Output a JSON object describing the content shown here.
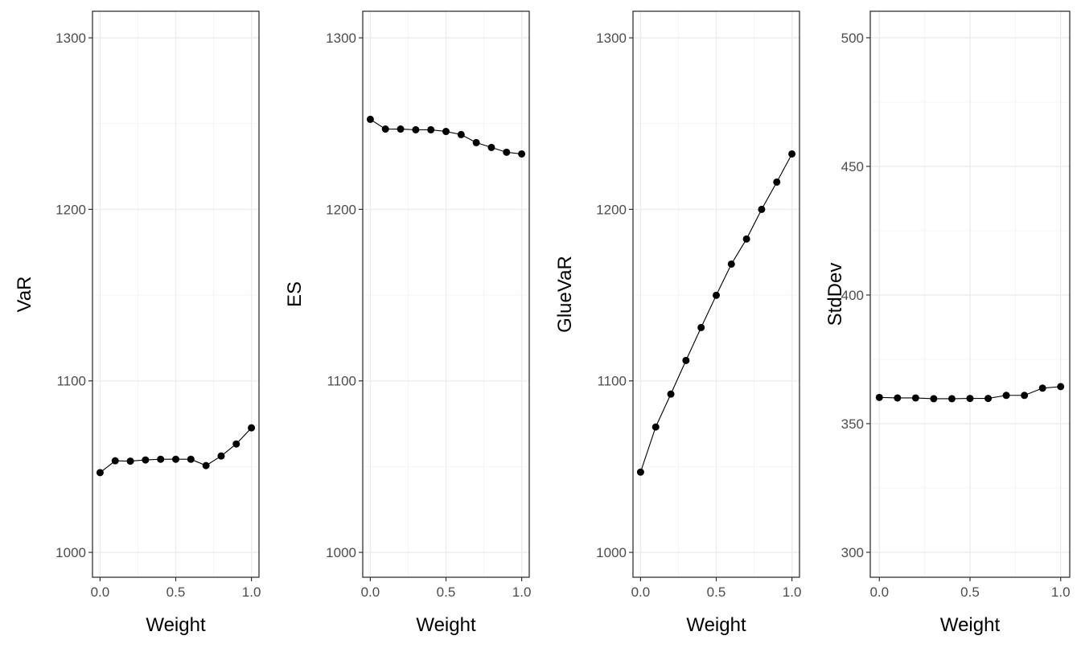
{
  "chart_data": [
    {
      "type": "line",
      "xlabel": "Weight",
      "ylabel": "VaR",
      "x": [
        0,
        0.1,
        0.2,
        0.3,
        0.4,
        0.5,
        0.6,
        0.7,
        0.8,
        0.9,
        1.0
      ],
      "y": [
        1046.5,
        1053.4,
        1053.2,
        1053.9,
        1054.3,
        1054.3,
        1054.3,
        1050.6,
        1056.2,
        1063.2,
        1072.6
      ],
      "xlim": [
        -0.05,
        1.05
      ],
      "ylim": [
        985.5,
        1315.5
      ],
      "xticks": [
        "0.0",
        "0.5",
        "1.0"
      ],
      "xtick_values": [
        0,
        0.5,
        1
      ],
      "yticks": [
        "1000",
        "1100",
        "1200",
        "1300"
      ],
      "ytick_values": [
        1000,
        1100,
        1200,
        1300
      ],
      "grid": true,
      "markers": true
    },
    {
      "type": "line",
      "xlabel": "Weight",
      "ylabel": "ES",
      "x": [
        0,
        0.1,
        0.2,
        0.3,
        0.4,
        0.5,
        0.6,
        0.7,
        0.8,
        0.9,
        1.0
      ],
      "y": [
        1252.5,
        1246.8,
        1246.8,
        1246.4,
        1246.4,
        1245.4,
        1243.6,
        1238.9,
        1236.1,
        1233.3,
        1232.3
      ],
      "xlim": [
        -0.05,
        1.05
      ],
      "ylim": [
        985.5,
        1315.5
      ],
      "xticks": [
        "0.0",
        "0.5",
        "1.0"
      ],
      "xtick_values": [
        0,
        0.5,
        1
      ],
      "yticks": [
        "1000",
        "1100",
        "1200",
        "1300"
      ],
      "ytick_values": [
        1000,
        1100,
        1200,
        1300
      ],
      "grid": true,
      "markers": true
    },
    {
      "type": "line",
      "xlabel": "Weight",
      "ylabel": "GlueVaR",
      "x": [
        0,
        0.1,
        0.2,
        0.3,
        0.4,
        0.5,
        0.6,
        0.7,
        0.8,
        0.9,
        1.0
      ],
      "y": [
        1046.8,
        1073.1,
        1092.3,
        1111.9,
        1131.1,
        1149.9,
        1168.1,
        1182.7,
        1200.0,
        1215.9,
        1232.3
      ],
      "xlim": [
        -0.05,
        1.05
      ],
      "ylim": [
        985.5,
        1315.5
      ],
      "xticks": [
        "0.0",
        "0.5",
        "1.0"
      ],
      "xtick_values": [
        0,
        0.5,
        1
      ],
      "yticks": [
        "1000",
        "1100",
        "1200",
        "1300"
      ],
      "ytick_values": [
        1000,
        1100,
        1200,
        1300
      ],
      "grid": true,
      "markers": true
    },
    {
      "type": "line",
      "xlabel": "Weight",
      "ylabel": "StdDev",
      "x": [
        0,
        0.1,
        0.2,
        0.3,
        0.4,
        0.5,
        0.6,
        0.7,
        0.8,
        0.9,
        1.0
      ],
      "y": [
        360.2,
        360.0,
        360.0,
        359.7,
        359.7,
        359.8,
        359.8,
        361.0,
        361.0,
        363.8,
        364.4
      ],
      "xlim": [
        -0.05,
        1.05
      ],
      "ylim": [
        290.3,
        510.3
      ],
      "xticks": [
        "0.0",
        "0.5",
        "1.0"
      ],
      "xtick_values": [
        0,
        0.5,
        1
      ],
      "yticks": [
        "300",
        "350",
        "400",
        "450",
        "500"
      ],
      "ytick_values": [
        300,
        350,
        400,
        450,
        500
      ],
      "grid": true,
      "markers": true
    }
  ]
}
